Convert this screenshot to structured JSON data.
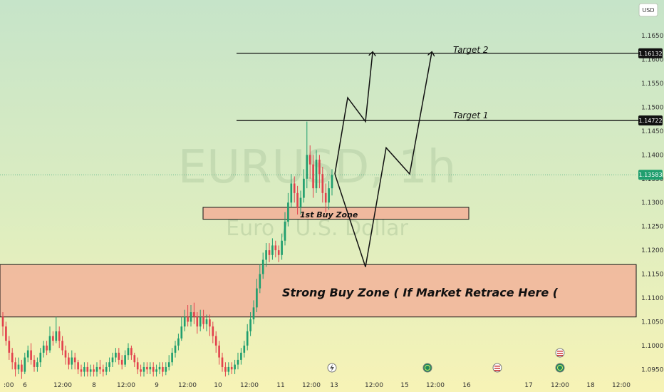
{
  "chart_data": {
    "type": "candlestick",
    "watermark_symbol": "EURUSD, 1h",
    "watermark_name": "Euro / U.S. Dollar",
    "currency": "USD",
    "ylim": [
      1.0925,
      1.1725
    ],
    "y_ticks": [
      "1.16500",
      "1.16000",
      "1.15500",
      "1.15000",
      "1.14500",
      "1.14000",
      "1.13500",
      "1.13000",
      "1.12500",
      "1.12000",
      "1.11500",
      "1.11000",
      "1.10500",
      "1.10000",
      "1.09500"
    ],
    "x_ticks": [
      ":00",
      "6",
      "12:00",
      "8",
      "12:00",
      "9",
      "12:00",
      "10",
      "12:00",
      "11",
      "12:00",
      "13",
      "12:00",
      "15",
      "12:00",
      "16",
      "17",
      "12:00",
      "18",
      "12:00"
    ],
    "price_labels": [
      {
        "text": "1.16132",
        "value": 1.16132,
        "style": "dark"
      },
      {
        "text": "1.14722",
        "value": 1.14722,
        "style": "dark"
      },
      {
        "text": "1.13583",
        "value": 1.13583,
        "style": "green"
      }
    ],
    "levels": [
      {
        "name": "Target 2",
        "value": 1.16132
      },
      {
        "name": "Target 1",
        "value": 1.14722
      }
    ],
    "zones": [
      {
        "label": "1st Buy Zone",
        "top": 1.129,
        "bottom": 1.1265
      },
      {
        "label": "Strong Buy Zone ( If Market Retrace Here (",
        "top": 1.117,
        "bottom": 1.106
      }
    ],
    "projection_paths": [
      [
        [
          1.136
        ],
        [
          1.152
        ],
        [
          1.147
        ],
        [
          1.1615
        ]
      ],
      [
        [
          1.136
        ],
        [
          1.1165
        ],
        [
          1.1415
        ],
        [
          1.136
        ],
        [
          1.1615
        ]
      ]
    ],
    "candles": [
      [
        1.106,
        1.104,
        1.107,
        1.102
      ],
      [
        1.104,
        1.101,
        1.105,
        1.1
      ],
      [
        1.101,
        1.0985,
        1.102,
        1.097
      ],
      [
        1.0985,
        1.0965,
        1.0995,
        1.095
      ],
      [
        1.0965,
        1.095,
        1.0975,
        1.0935
      ],
      [
        1.095,
        1.096,
        1.0975,
        1.094
      ],
      [
        1.096,
        1.0945,
        1.097,
        1.093
      ],
      [
        1.0945,
        1.0975,
        1.0985,
        1.094
      ],
      [
        1.0975,
        1.099,
        1.1,
        1.0965
      ],
      [
        1.099,
        1.097,
        1.1005,
        1.096
      ],
      [
        1.097,
        1.0955,
        1.098,
        1.0945
      ],
      [
        1.0955,
        1.0965,
        1.0975,
        1.0945
      ],
      [
        1.0965,
        1.0985,
        1.0995,
        1.0955
      ],
      [
        1.0985,
        1.1,
        1.101,
        1.0975
      ],
      [
        1.1,
        1.099,
        1.101,
        1.098
      ],
      [
        1.099,
        1.102,
        1.104,
        1.0985
      ],
      [
        1.102,
        1.101,
        1.103,
        1.1
      ],
      [
        1.101,
        1.103,
        1.106,
        1.1005
      ],
      [
        1.103,
        1.101,
        1.104,
        1.0995
      ],
      [
        1.101,
        1.099,
        1.102,
        1.098
      ],
      [
        1.099,
        1.0975,
        1.1,
        1.096
      ],
      [
        1.0975,
        1.096,
        1.0985,
        1.095
      ],
      [
        1.096,
        1.0975,
        1.099,
        1.095
      ],
      [
        1.0975,
        1.0965,
        1.0985,
        1.095
      ],
      [
        1.0965,
        1.095,
        1.097,
        1.094
      ],
      [
        1.095,
        1.0945,
        1.096,
        1.0935
      ],
      [
        1.0945,
        1.0955,
        1.0965,
        1.0935
      ],
      [
        1.0955,
        1.0945,
        1.0965,
        1.0935
      ],
      [
        1.0945,
        1.095,
        1.096,
        1.0935
      ],
      [
        1.095,
        1.0945,
        1.096,
        1.0935
      ],
      [
        1.0945,
        1.0955,
        1.0965,
        1.0935
      ],
      [
        1.0955,
        1.095,
        1.097,
        1.094
      ],
      [
        1.095,
        1.0945,
        1.096,
        1.0935
      ],
      [
        1.0945,
        1.0955,
        1.0965,
        1.0938
      ],
      [
        1.0955,
        1.0965,
        1.0975,
        1.0945
      ],
      [
        1.0965,
        1.0975,
        1.0985,
        1.0955
      ],
      [
        1.0975,
        1.0985,
        1.0995,
        1.0965
      ],
      [
        1.0985,
        1.097,
        1.0995,
        1.096
      ],
      [
        1.097,
        1.096,
        1.098,
        1.095
      ],
      [
        1.096,
        1.098,
        1.099,
        1.0955
      ],
      [
        1.098,
        1.0995,
        1.1005,
        1.097
      ],
      [
        1.0995,
        1.098,
        1.1,
        1.097
      ],
      [
        1.098,
        1.0965,
        1.0985,
        1.0955
      ],
      [
        1.0965,
        1.095,
        1.0975,
        1.094
      ],
      [
        1.095,
        1.0945,
        1.096,
        1.0935
      ],
      [
        1.0945,
        1.0955,
        1.0965,
        1.0935
      ],
      [
        1.0955,
        1.095,
        1.0965,
        1.094
      ],
      [
        1.095,
        1.0955,
        1.0965,
        1.094
      ],
      [
        1.0955,
        1.0945,
        1.0965,
        1.0935
      ],
      [
        1.0945,
        1.095,
        1.096,
        1.0935
      ],
      [
        1.095,
        1.0955,
        1.0965,
        1.094
      ],
      [
        1.0955,
        1.0945,
        1.0965,
        1.0935
      ],
      [
        1.0945,
        1.0955,
        1.0965,
        1.0938
      ],
      [
        1.0955,
        1.0965,
        1.098,
        1.0948
      ],
      [
        1.0965,
        1.0985,
        1.0995,
        1.0958
      ],
      [
        1.0985,
        1.1,
        1.101,
        1.0975
      ],
      [
        1.1,
        1.1015,
        1.1025,
        1.099
      ],
      [
        1.1015,
        1.104,
        1.106,
        1.101
      ],
      [
        1.104,
        1.106,
        1.1075,
        1.103
      ],
      [
        1.106,
        1.105,
        1.1085,
        1.104
      ],
      [
        1.105,
        1.107,
        1.1085,
        1.104
      ],
      [
        1.107,
        1.106,
        1.109,
        1.1045
      ],
      [
        1.106,
        1.104,
        1.107,
        1.1025
      ],
      [
        1.104,
        1.106,
        1.1075,
        1.103
      ],
      [
        1.106,
        1.1045,
        1.1075,
        1.1035
      ],
      [
        1.1045,
        1.1055,
        1.1065,
        1.103
      ],
      [
        1.1055,
        1.104,
        1.1065,
        1.102
      ],
      [
        1.104,
        1.102,
        1.105,
        1.1005
      ],
      [
        1.102,
        1.1,
        1.103,
        1.0985
      ],
      [
        1.1,
        1.0975,
        1.101,
        1.096
      ],
      [
        1.0975,
        1.0955,
        1.0985,
        1.0945
      ],
      [
        1.0955,
        1.0945,
        1.0965,
        1.0935
      ],
      [
        1.0945,
        1.0955,
        1.0965,
        1.0938
      ],
      [
        1.0955,
        1.095,
        1.0965,
        1.094
      ],
      [
        1.095,
        1.096,
        1.097,
        1.094
      ],
      [
        1.096,
        1.097,
        1.0985,
        1.095
      ],
      [
        1.097,
        1.0985,
        1.0995,
        1.096
      ],
      [
        1.0985,
        1.1,
        1.101,
        1.0975
      ],
      [
        1.1,
        1.103,
        1.1045,
        1.099
      ],
      [
        1.103,
        1.1055,
        1.107,
        1.102
      ],
      [
        1.1055,
        1.108,
        1.1095,
        1.1045
      ],
      [
        1.108,
        1.112,
        1.114,
        1.107
      ],
      [
        1.112,
        1.115,
        1.117,
        1.111
      ],
      [
        1.115,
        1.118,
        1.1195,
        1.114
      ],
      [
        1.118,
        1.12,
        1.1215,
        1.1165
      ],
      [
        1.12,
        1.119,
        1.1215,
        1.1175
      ],
      [
        1.119,
        1.121,
        1.1225,
        1.118
      ],
      [
        1.121,
        1.12,
        1.122,
        1.1185
      ],
      [
        1.12,
        1.119,
        1.121,
        1.1175
      ],
      [
        1.119,
        1.122,
        1.1235,
        1.118
      ],
      [
        1.122,
        1.126,
        1.128,
        1.121
      ],
      [
        1.126,
        1.13,
        1.132,
        1.125
      ],
      [
        1.13,
        1.134,
        1.136,
        1.129
      ],
      [
        1.134,
        1.132,
        1.1355,
        1.13
      ],
      [
        1.132,
        1.129,
        1.1335,
        1.1275
      ],
      [
        1.129,
        1.131,
        1.1325,
        1.1275
      ],
      [
        1.131,
        1.135,
        1.137,
        1.13
      ],
      [
        1.135,
        1.14,
        1.147,
        1.133
      ],
      [
        1.14,
        1.138,
        1.142,
        1.135
      ],
      [
        1.138,
        1.133,
        1.14,
        1.131
      ],
      [
        1.133,
        1.139,
        1.141,
        1.132
      ],
      [
        1.139,
        1.136,
        1.14,
        1.133
      ],
      [
        1.136,
        1.132,
        1.1375,
        1.13
      ],
      [
        1.132,
        1.13,
        1.134,
        1.128
      ],
      [
        1.13,
        1.133,
        1.1345,
        1.1285
      ],
      [
        1.133,
        1.1358,
        1.137,
        1.1315
      ]
    ]
  }
}
